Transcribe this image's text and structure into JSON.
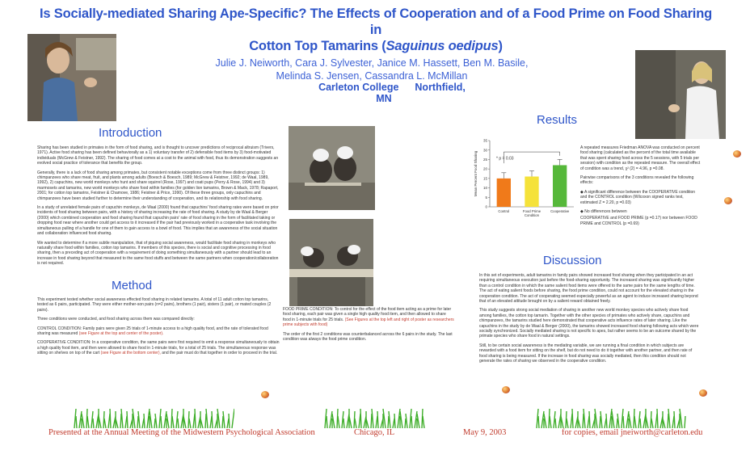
{
  "title": {
    "line1": "Is Socially-mediated Sharing Ape-Specific? The Effects of Cooperation and of a Food Prime on Food Sharing in",
    "line2_prefix": "Cotton Top Tamarins (",
    "line2_italic": "Saguinus oedipus",
    "line2_suffix": ")"
  },
  "authors": {
    "line1": "Julie  J. Neiworth,   Cara  J. Sylvester,   Janice  M. Hassett,   Ben  M. Basile,",
    "line2": "Melinda  S. Jensen,    Cassandra  L. McMillan"
  },
  "institution": {
    "name": "Carleton College",
    "location": "Northfield, MN"
  },
  "introduction": {
    "heading": "Introduction",
    "p1": "Sharing has been studied in primates in the form of food sharing, and is thought to uncover predictions of reciprocal altruism (Trivers, 1971). Active food sharing has been defined behaviorally as a 1) voluntary transfer of 2) defensible food items by 3) food-motivated individuals (McGrew & Feistner, 1992). The sharing of food comes at a cost to the animal with food, thus its demonstration suggests an evolved social practice of tolerance that benefits the group.",
    "p2": "Generally, there is a lack of food sharing among primates, but consistent notable exceptions come from three distinct groups: 1) chimpanzees who share meat, fruit, and plants among adults (Boesch & Boesch, 1989; McGrew & Feistner, 1992; de Waal, 1989, 1992), 2) capuchins, new world monkeys who hunt and share squirrel (Rose, 1997) and coati pups (Perry & Rose, 1994) and 3) marmosets and tamarins, new world monkeys who share food within families (for golden lion tamarins, Brown & Mack, 1978; Rapaport, 2001; for cotton top tamarins, Feistner & Chamove, 1986; Feistner & Price, 1990). Of these three groups, only capuchins and chimpanzees have been studied further to determine their understanding of cooperation, and its relationship with food sharing.",
    "p3": "In a study of unrelated female pairs of capuchin monkeys, de Waal (2000) found that capuchins' food sharing rates were based on prior incidents of food sharing between pairs, with a history of sharing increasing the rate of food sharing. A study by de Waal & Berger (2000) which combined cooperation and food sharing found that capuchin pairs' rate of food sharing in the form of facilitated taking or dropping food near where another could get access to it increased if the pair had previously worked in a cooperative task involving the simultaneous pulling of a handle for one of them to gain access to a bowl of food. This implies that an awareness of the social situation and collaboration influenced food sharing.",
    "p4": "We wanted to determine if a more subtle manipulation, that of piquing social awareness, would facilitate food sharing in monkeys who naturally share food within families, cotton top tamarins. If members of this species, there is social and cognitive processing in food sharing, then a preceding act of cooperation with a requirement of doing something simultaneously with a partner should lead to an increase in food sharing beyond that measured to the same food stuffs and between the same partners when cooperation/collaboration is not required."
  },
  "method": {
    "heading": "Method",
    "p1": "This experiment tested whether social awareness effected food sharing in related tamarins. A total of 11 adult cotton top tamarins, tested as 6 pairs, participated. They were either mother-son pairs (n=2 pairs), brothers (1 pair), sisters (1 pair), or mated couples (2 pairs).",
    "p2": "Three conditions were conducted, and food sharing across them was compared directly:",
    "p3_text": "CONTROL CONDITION: Family pairs were given 25 trials of 1-minute access to a high quality food, and the rate of tolerated food sharing was measured",
    "p3_red": " (see Figure at the top and center of the poster).",
    "p4_text": "COOPERATIVE CONDITION: In a cooperative condition, the same pairs were first required to emit a response simultaneously to obtain a high quality food item, and then were allowed to share food in 1-minute trials, for a total of 25 trials. The simultaneous response was sitting on shelves on top of the cart",
    "p4_red": " (see Figure at the bottom center),",
    "p4_tail": " and the pair must do that together in order to proceed in the trial.",
    "fp_text": "FOOD PRIME CONDITION: To control for the effect of the food item acting as a prime for later food sharing, each pair was given a single high quality food item, and then allowed to share food in 1-minute trials for 25 trials.",
    "fp_red": " (See Figures at the top left and right of poster as researchers prime subjects with food)",
    "p5": "The order of the first 2 conditions was counterbalanced across the 6 pairs in the study. The last condition was always the food prime condition."
  },
  "results": {
    "heading": "Results",
    "p1": "A repeated measures Friedman ANOVA was conducted on percent food sharing (calculated as the percent of the total time available that was spent sharing food across the 5 sessions, with 5 trials per session) with condition as the repeated measure. The overall effect of condition was a trend, χ² (2) = 4.96, p =0.08.",
    "p2": "Pairwise comparisons of the 3 conditions revealed the following effects:",
    "p3": "A significant difference between the COOPERATIVE condition and the CONTROL condition (Wilcoxon signed ranks test, estimated Z = 2.20, p =0.03)",
    "p4": "No differences between",
    "p5": "COOPERATIVE and FOOD PRIME (p =0.17) nor between FOOD PRIME and CONTROL (p =0.69)"
  },
  "discussion": {
    "heading": "Discussion",
    "p1": "In this set of experiments, adult tamarins in family pairs showed increased food sharing when they participated in an act requiring simultaneous execution just before the food-sharing opportunity. The increased sharing was significantly higher than a control condition in which the same salient food items were offered to the same pairs for the same lengths of time. The act of eating salient foods before sharing, the food prime condition, could not account for the elevated sharing in the cooperation condition. The act of cooperating seemed especially powerful as an agent to induce increased sharing beyond that of an elevated attitude brought on by a salient reward obtained freely.",
    "p2": "This study suggests strong social mediation of sharing in another new world monkey species who actively share food among families, the cotton top tamarin. Together with the other species of primates who actively share, capuchins and chimpanzees, the tamarins studied here demonstrated that cooperative acts influence rates of later sharing. Like the capuchins in the study by de Waal & Berger (2000), the tamarins showed increased food sharing following acts which were socially synchronized. Socially mediated sharing is not specific to apes, but rather seems to be an outcome shared by the primate species who share food in natural settings.",
    "p3": "Still, to be certain social awareness is the mediating variable, we are running a final condition in which subjects are rewarded with a food item for sitting on the shelf, but do not need to do it together with another partner, and then rate of food sharing is being measured. If the increase in food sharing was socially mediated, then this condition should not generate the rates of sharing we observed in the cooperative condition."
  },
  "chart_data": {
    "type": "bar",
    "categories": [
      "Control",
      "Food Prime\nCondition",
      "Cooperative"
    ],
    "values": [
      15,
      16,
      22
    ],
    "errors": [
      3,
      3,
      3
    ],
    "ylabel": "Mean Percent Food Sharing",
    "ylim": [
      0,
      35
    ],
    "yticks": [
      0,
      5,
      10,
      15,
      20,
      25,
      30,
      35
    ],
    "annotation": "* p = 0.03",
    "colors": [
      "#f07a1a",
      "#f5e23a",
      "#56b83a"
    ],
    "grid": false
  },
  "footer": {
    "meeting": "Presented at the Annual Meeting of the Midwestern Psychological Association",
    "city": "Chicago, IL",
    "date": "May 9, 2003",
    "contact": "for copies, email jneiworth@carleton.edu"
  },
  "icons": [
    "grass-tuft-icon",
    "flower-bug-icon",
    "photo-researcher",
    "photo-tamarins"
  ]
}
